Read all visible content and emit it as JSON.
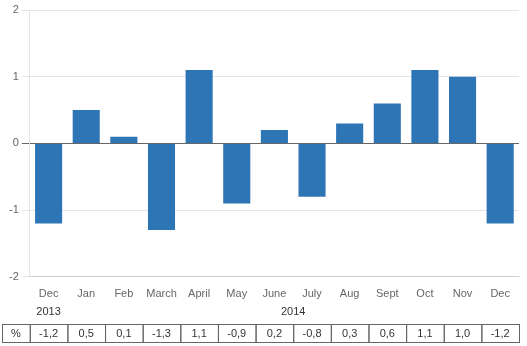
{
  "chart_data": {
    "type": "bar",
    "categories": [
      "Dec",
      "Jan",
      "Feb",
      "March",
      "April",
      "May",
      "June",
      "July",
      "Aug",
      "Sept",
      "Oct",
      "Nov",
      "Dec"
    ],
    "values": [
      -1.2,
      0.5,
      0.1,
      -1.3,
      1.1,
      -0.9,
      0.2,
      -0.8,
      0.3,
      0.6,
      1.1,
      1.0,
      -1.2
    ],
    "value_labels": [
      "-1,2",
      "0,5",
      "0,1",
      "-1,3",
      "1,1",
      "-0,9",
      "0,2",
      "-0,8",
      "0,3",
      "0,6",
      "1,1",
      "1,0",
      "-1,2"
    ],
    "value_labels_header": "%",
    "annotations": [
      {
        "text": "2013",
        "first": 0,
        "last": 0
      },
      {
        "text": "2014",
        "first": 1,
        "last": 12
      }
    ],
    "color": "#2E75B6",
    "ylim": [
      -2,
      2
    ],
    "yticks": [
      -2,
      -1,
      0,
      1,
      2
    ],
    "grid": true
  }
}
